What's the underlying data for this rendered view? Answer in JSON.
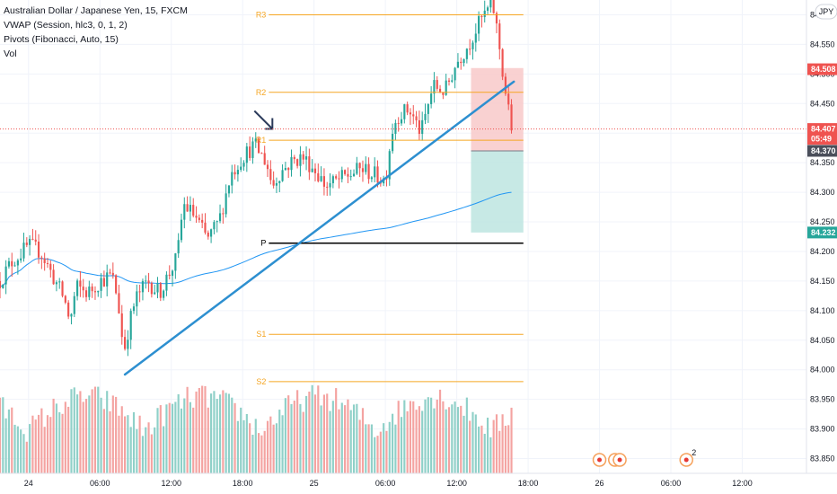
{
  "legend": {
    "title": "Australian Dollar / Japanese Yen, 15, FXCM",
    "line2": "VWAP (Session, hlc3, 0, 1, 2)",
    "line3": "Pivots (Fibonacci, Auto, 15)",
    "line4": "Vol"
  },
  "currency_badge": "JPY",
  "colors": {
    "up": "#26a69a",
    "down": "#ef5350",
    "vol_up": "#8fd0c8",
    "vol_down": "#f4a3a1",
    "pivot_orange": "#f5a623",
    "pivot_black": "#000000",
    "vwap": "#2196f3",
    "trendline": "#2d8fd0",
    "loss_zone": "#f8c9c9",
    "profit_zone": "#bde5e0",
    "price_red": "#ef5350",
    "price_green": "#26a69a",
    "price_gray": "#4a4e5a"
  },
  "chart_data": {
    "type": "candlestick",
    "symbol": "AUDJPY",
    "interval": "15",
    "y_range": [
      83.825,
      84.625
    ],
    "y_ticks": [
      "84.600",
      "84.550",
      "84.500",
      "84.450",
      "84.400",
      "84.350",
      "84.300",
      "84.250",
      "84.200",
      "84.150",
      "84.100",
      "84.050",
      "84.000",
      "83.950",
      "83.900",
      "83.850"
    ],
    "x_ticks": [
      {
        "label": "24",
        "hours": 0
      },
      {
        "label": "06:00",
        "hours": 6
      },
      {
        "label": "12:00",
        "hours": 12
      },
      {
        "label": "18:00",
        "hours": 18
      },
      {
        "label": "25",
        "hours": 24
      },
      {
        "label": "06:00",
        "hours": 30
      },
      {
        "label": "12:00",
        "hours": 36
      },
      {
        "label": "18:00",
        "hours": 42
      },
      {
        "label": "26",
        "hours": 48
      },
      {
        "label": "06:00",
        "hours": 54
      },
      {
        "label": "12:00",
        "hours": 60
      }
    ],
    "x_range_hours": [
      -2.4,
      65.4
    ],
    "close_path": [
      [
        -2.4,
        84.15
      ],
      [
        -1.5,
        84.18
      ],
      [
        0,
        84.21
      ],
      [
        1,
        84.2
      ],
      [
        2,
        84.16
      ],
      [
        3,
        84.12
      ],
      [
        3.5,
        84.08
      ],
      [
        4,
        84.14
      ],
      [
        5,
        84.13
      ],
      [
        6,
        84.15
      ],
      [
        7,
        84.16
      ],
      [
        7.5,
        84.12
      ],
      [
        8,
        84.03
      ],
      [
        8.5,
        84.08
      ],
      [
        9,
        84.12
      ],
      [
        10,
        84.15
      ],
      [
        11,
        84.13
      ],
      [
        12,
        84.17
      ],
      [
        12.5,
        84.19
      ],
      [
        13,
        84.28
      ],
      [
        14,
        84.26
      ],
      [
        15,
        84.22
      ],
      [
        16,
        84.25
      ],
      [
        17,
        84.33
      ],
      [
        18,
        84.36
      ],
      [
        19,
        84.38
      ],
      [
        20,
        84.35
      ],
      [
        20.5,
        84.31
      ],
      [
        21,
        84.33
      ],
      [
        22,
        84.35
      ],
      [
        23,
        84.36
      ],
      [
        24,
        84.34
      ],
      [
        25,
        84.31
      ],
      [
        26,
        84.32
      ],
      [
        27,
        84.33
      ],
      [
        28,
        84.34
      ],
      [
        29,
        84.33
      ],
      [
        30,
        84.32
      ],
      [
        30.5,
        84.4
      ],
      [
        31,
        84.43
      ],
      [
        32,
        84.44
      ],
      [
        33,
        84.4
      ],
      [
        34,
        84.48
      ],
      [
        35,
        84.47
      ],
      [
        36,
        84.52
      ],
      [
        37,
        84.55
      ],
      [
        38,
        84.59
      ],
      [
        39,
        84.62
      ],
      [
        39.5,
        84.56
      ],
      [
        40,
        84.48
      ],
      [
        40.6,
        84.41
      ]
    ],
    "volume_range": [
      0,
      1
    ],
    "pivots": [
      {
        "label": "R3",
        "value": 84.6,
        "color": "orange"
      },
      {
        "label": "R2",
        "value": 84.469,
        "color": "orange"
      },
      {
        "label": "R1",
        "value": 84.388,
        "color": "orange"
      },
      {
        "label": "P",
        "value": 84.214,
        "color": "black"
      },
      {
        "label": "S1",
        "value": 84.06,
        "color": "orange"
      },
      {
        "label": "S2",
        "value": 83.98,
        "color": "orange"
      }
    ],
    "pivot_x_range": [
      20.2,
      41.6
    ],
    "trendline": [
      [
        8.1,
        83.992
      ],
      [
        40.8,
        84.487
      ]
    ],
    "annotation_arrow": {
      "at_hours": 20.5,
      "at_value": 84.392
    },
    "position": {
      "x_range": [
        37.2,
        41.6
      ],
      "stop": 84.51,
      "entry": 84.37,
      "target": 84.232
    },
    "price_labels": [
      {
        "value": "84.508",
        "price": 84.508,
        "color": "red"
      },
      {
        "value": "84.407",
        "sub": "05:49",
        "price": 84.407,
        "color": "red"
      },
      {
        "value": "84.370",
        "price": 84.37,
        "color": "gray"
      },
      {
        "value": "84.232",
        "price": 84.232,
        "color": "green"
      }
    ],
    "current_price": 84.407,
    "events": [
      {
        "hours": 48,
        "label": ""
      },
      {
        "hours": 49.3,
        "label": ""
      },
      {
        "hours": 49.7,
        "label": ""
      },
      {
        "hours": 55.3,
        "label": "2"
      }
    ]
  }
}
